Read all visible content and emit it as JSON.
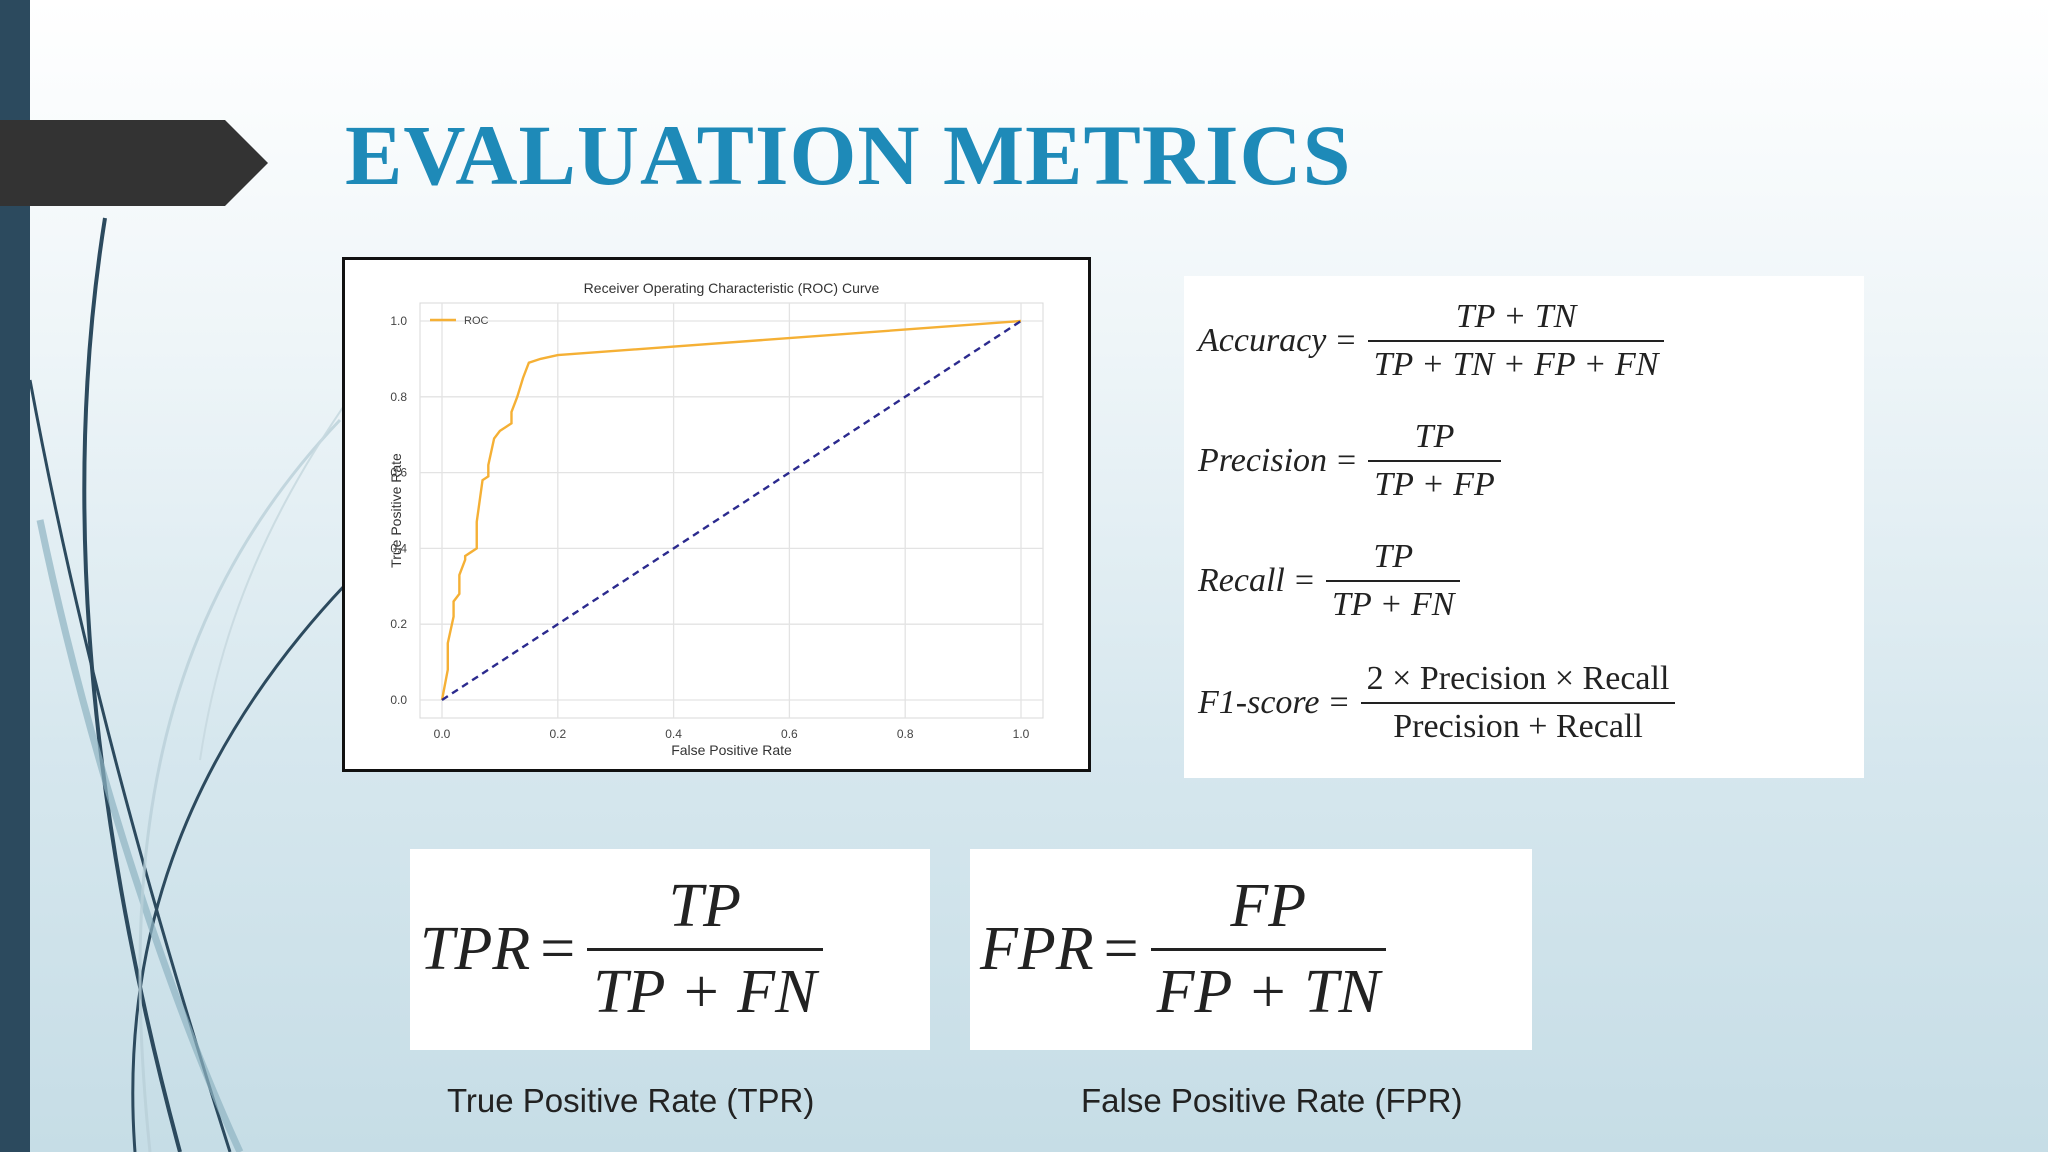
{
  "slide": {
    "title": "EVALUATION METRICS",
    "colors": {
      "title": "#1e8ab8",
      "left_bar": "#2c4a5e",
      "arrow": "#333333"
    }
  },
  "roc_chart": {
    "chart_data": {
      "type": "line",
      "title": "Receiver Operating Characteristic (ROC) Curve",
      "xlabel": "False Positive Rate",
      "ylabel": "True Positive Rate",
      "xlim": [
        0,
        1
      ],
      "ylim": [
        0,
        1
      ],
      "xticks": [
        "0.0",
        "0.2",
        "0.4",
        "0.6",
        "0.8",
        "1.0"
      ],
      "yticks": [
        "0.0",
        "0.2",
        "0.4",
        "0.6",
        "0.8",
        "1.0"
      ],
      "grid": true,
      "legend_position": "top-left",
      "series": [
        {
          "name": "ROC",
          "color": "#f5b035",
          "x": [
            0.0,
            0.01,
            0.01,
            0.02,
            0.02,
            0.03,
            0.03,
            0.04,
            0.04,
            0.05,
            0.06,
            0.06,
            0.07,
            0.08,
            0.08,
            0.09,
            0.1,
            0.11,
            0.12,
            0.12,
            0.13,
            0.14,
            0.15,
            0.17,
            0.2,
            1.0
          ],
          "y": [
            0.0,
            0.08,
            0.15,
            0.22,
            0.26,
            0.28,
            0.33,
            0.37,
            0.38,
            0.39,
            0.4,
            0.47,
            0.58,
            0.59,
            0.62,
            0.69,
            0.71,
            0.72,
            0.73,
            0.76,
            0.8,
            0.85,
            0.89,
            0.9,
            0.91,
            1.0
          ]
        },
        {
          "color": "#2b2a8e",
          "style": "dashed",
          "x": [
            0.0,
            1.0
          ],
          "y": [
            0.0,
            1.0
          ]
        }
      ]
    }
  },
  "formulas": {
    "accuracy": {
      "lhs": "Accuracy",
      "num": "TP + TN",
      "den": "TP + TN + FP + FN"
    },
    "precision": {
      "lhs": "Precision",
      "num": "TP",
      "den": "TP + FP"
    },
    "recall": {
      "lhs": "Recall",
      "num": "TP",
      "den": "TP + FN"
    },
    "f1": {
      "lhs": "F1-score",
      "num": "2 × Precision × Recall",
      "den": "Precision + Recall"
    },
    "tpr": {
      "lhs": "TPR",
      "num": "TP",
      "den": "TP + FN"
    },
    "fpr": {
      "lhs": "FPR",
      "num": "FP",
      "den": "FP + TN"
    },
    "eq": "="
  },
  "captions": {
    "tpr": "True Positive Rate (TPR)",
    "fpr": "False Positive Rate (FPR)"
  }
}
